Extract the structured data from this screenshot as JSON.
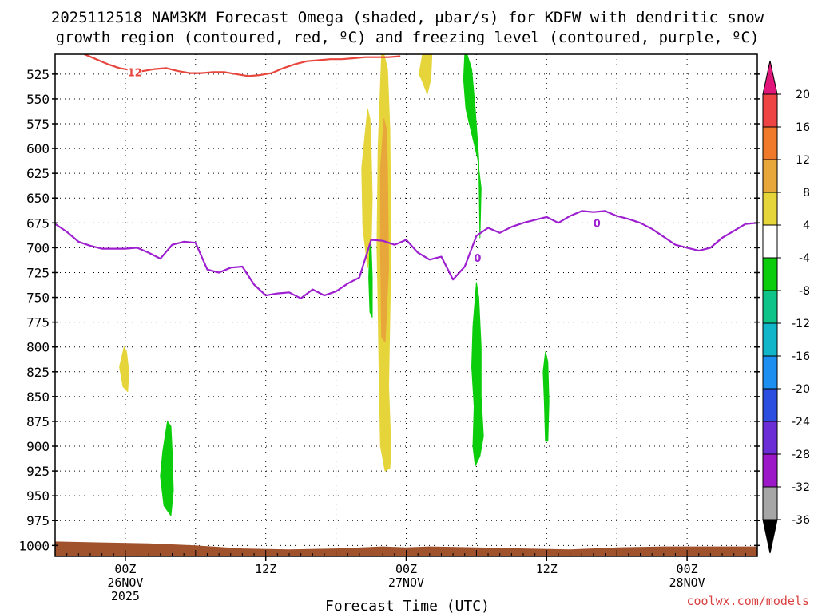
{
  "chart_data": {
    "type": "heatmap",
    "title_line1": "2025112518 NAM3KM Forecast Omega (shaded, μbar/s) for KDFW with dendritic snow",
    "title_line2": "growth region (contoured, red, ºC) and freezing level (contoured, purple, ºC)",
    "xlabel": "Forecast Time (UTC)",
    "ylabel": "",
    "credit": "coolwx.com/models",
    "x_unit": "forecast hour from 2025-11-25 18Z",
    "xlim": [
      0,
      60
    ],
    "ylim": [
      1011,
      505
    ],
    "y_ticks": [
      525,
      550,
      575,
      600,
      625,
      650,
      675,
      700,
      725,
      750,
      775,
      800,
      825,
      850,
      875,
      900,
      925,
      950,
      975,
      1000
    ],
    "y_tick_labels": [
      "525",
      "550",
      "575",
      "600",
      "625",
      "650",
      "675",
      "700",
      "725",
      "750",
      "775",
      "800",
      "825",
      "850",
      "875",
      "900",
      "925",
      "950",
      "975",
      "1000"
    ],
    "x_ticks": [
      {
        "hour": 6,
        "label1": "00Z",
        "label2": "26NOV",
        "label3": "2025"
      },
      {
        "hour": 18,
        "label1": "12Z",
        "label2": "",
        "label3": ""
      },
      {
        "hour": 30,
        "label1": "00Z",
        "label2": "27NOV",
        "label3": ""
      },
      {
        "hour": 42,
        "label1": "12Z",
        "label2": "",
        "label3": ""
      },
      {
        "hour": 54,
        "label1": "00Z",
        "label2": "28NOV",
        "label3": ""
      }
    ],
    "grid_hours": [
      6,
      12,
      18,
      24,
      30,
      36,
      42,
      48,
      54
    ],
    "colorbar": {
      "labels": [
        "20",
        "16",
        "12",
        "8",
        "4",
        "-4",
        "-8",
        "-12",
        "-16",
        "-20",
        "-24",
        "-28",
        "-32",
        "-36"
      ],
      "bins": [
        {
          "from": 16,
          "to": 20,
          "color": "#ef4444"
        },
        {
          "from": 12,
          "to": 16,
          "color": "#f07a2a"
        },
        {
          "from": 8,
          "to": 12,
          "color": "#e8a73a"
        },
        {
          "from": 4,
          "to": 8,
          "color": "#e5d53a"
        },
        {
          "from": -4,
          "to": 4,
          "color": "#ffffff"
        },
        {
          "from": -8,
          "to": -4,
          "color": "#0ccd0c"
        },
        {
          "from": -12,
          "to": -8,
          "color": "#0fc489"
        },
        {
          "from": -16,
          "to": -12,
          "color": "#11b7c9"
        },
        {
          "from": -20,
          "to": -16,
          "color": "#1c8ff0"
        },
        {
          "from": -24,
          "to": -20,
          "color": "#2b4ee0"
        },
        {
          "from": -28,
          "to": -24,
          "color": "#6a2dd6"
        },
        {
          "from": -32,
          "to": -28,
          "color": "#9c17c8"
        },
        {
          "from": -36,
          "to": -32,
          "color": "#a6a6a6"
        }
      ],
      "over_color": "#e0167a",
      "under_color": "#000000"
    },
    "shaded_regions": [
      {
        "name": "yellow-lift-1",
        "color": "#e5d53a",
        "x": [
          5.9,
          5.5,
          5.8,
          6.2,
          6.3,
          6.1
        ],
        "y": [
          800,
          820,
          840,
          845,
          825,
          805
        ]
      },
      {
        "name": "green-sink-1",
        "color": "#0ccd0c",
        "x": [
          9.6,
          9.2,
          9.0,
          9.3,
          9.9,
          10.1,
          10.0,
          9.9
        ],
        "y": [
          875,
          905,
          930,
          960,
          970,
          945,
          905,
          880
        ]
      },
      {
        "name": "yellow-lift-2",
        "color": "#e5d53a",
        "x": [
          26.7,
          26.2,
          26.3,
          26.7,
          27.0,
          27.1,
          27.0,
          26.9
        ],
        "y": [
          560,
          620,
          680,
          720,
          700,
          650,
          600,
          570
        ]
      },
      {
        "name": "yellow-lift-3",
        "color": "#e5d53a",
        "x": [
          27.9,
          27.6,
          27.5,
          27.6,
          27.7,
          27.8,
          28.2,
          28.6,
          28.7,
          28.5,
          28.7,
          28.6,
          28.4,
          28.1
        ],
        "y": [
          505,
          600,
          700,
          760,
          840,
          900,
          925,
          922,
          905,
          840,
          700,
          580,
          520,
          505
        ]
      },
      {
        "name": "orange-lift-core",
        "color": "#e8a73a",
        "x": [
          28.1,
          27.8,
          27.8,
          27.9,
          28.2,
          28.5,
          28.4,
          28.3
        ],
        "y": [
          570,
          620,
          700,
          790,
          795,
          720,
          620,
          580
        ]
      },
      {
        "name": "green-sink-2",
        "color": "#0ccd0c",
        "x": [
          26.9,
          26.8,
          26.9,
          27.1,
          27.1,
          27.0
        ],
        "y": [
          695,
          730,
          765,
          770,
          730,
          697
        ]
      },
      {
        "name": "yellow-lift-4",
        "color": "#e5d53a",
        "x": [
          31.4,
          31.1,
          31.3,
          31.8,
          32.1,
          32.2,
          32.1,
          32.0
        ],
        "y": [
          505,
          525,
          530,
          545,
          530,
          505,
          505,
          505
        ]
      },
      {
        "name": "green-sink-3",
        "color": "#0ccd0c",
        "x": [
          35.0,
          34.9,
          35.1,
          35.6,
          36.1,
          36.4,
          36.3,
          36.2,
          35.9,
          35.6,
          35.2
        ],
        "y": [
          505,
          530,
          560,
          585,
          610,
          640,
          690,
          610,
          560,
          520,
          505
        ]
      },
      {
        "name": "green-sink-4",
        "color": "#0ccd0c",
        "x": [
          36.0,
          35.7,
          35.6,
          35.8,
          35.7,
          35.9,
          36.3,
          36.6,
          36.4,
          36.4,
          36.2
        ],
        "y": [
          735,
          780,
          820,
          860,
          900,
          920,
          910,
          890,
          850,
          800,
          750
        ]
      },
      {
        "name": "green-sink-5",
        "color": "#0ccd0c",
        "x": [
          41.9,
          41.7,
          41.8,
          41.9,
          42.1,
          42.2,
          42.1
        ],
        "y": [
          805,
          825,
          855,
          895,
          895,
          855,
          815
        ]
      }
    ],
    "contours": [
      {
        "name": "dendritic-growth-minus12",
        "label": "12",
        "label_hour": 6.8,
        "label_level": 523,
        "color": "#e8453c",
        "hours": [
          2.5,
          3.5,
          4.5,
          5.5,
          6.5,
          7.5,
          8.5,
          9.5,
          10.5,
          11.5,
          12.5,
          13.5,
          14.5,
          15.5,
          16.5,
          17.5,
          18.5,
          19.5,
          20.5,
          21.5,
          22.5,
          23.5,
          24.5,
          25.5,
          26.5,
          27.5,
          28.5,
          29.5
        ],
        "levels": [
          505,
          510,
          515,
          519,
          521,
          522,
          520,
          519,
          522,
          524,
          524,
          523,
          523,
          525,
          527,
          526,
          524,
          519,
          515,
          512,
          511,
          510,
          510,
          509,
          508,
          508,
          508,
          507
        ]
      },
      {
        "name": "freezing-level-0",
        "label": "0",
        "label_hour": 36.1,
        "label_level": 710,
        "label2": "0",
        "label2_hour": 46.3,
        "label2_level": 675,
        "color": "#9d1fcf",
        "hours": [
          0,
          1,
          2,
          3,
          4,
          5,
          6,
          7,
          8,
          9,
          10,
          11,
          12,
          13,
          14,
          15,
          16,
          17,
          18,
          19,
          20,
          21,
          22,
          23,
          24,
          25,
          26,
          27,
          28,
          29,
          30,
          31,
          32,
          33,
          34,
          35,
          36,
          37,
          38,
          39,
          40,
          41,
          42,
          43,
          44,
          45,
          46,
          47,
          48,
          49,
          50,
          51,
          52,
          53,
          54,
          55,
          56,
          57,
          58,
          59,
          60
        ],
        "levels": [
          676,
          684,
          694,
          698,
          701,
          701,
          701,
          700,
          705,
          711,
          697,
          694,
          695,
          722,
          725,
          720,
          719,
          737,
          748,
          746,
          745,
          751,
          742,
          748,
          744,
          736,
          730,
          692,
          693,
          697,
          692,
          705,
          712,
          709,
          732,
          719,
          688,
          680,
          685,
          679,
          675,
          672,
          669,
          675,
          668,
          663,
          664,
          663,
          668,
          671,
          675,
          681,
          689,
          697,
          700,
          703,
          700,
          690,
          683,
          676,
          675
        ]
      }
    ],
    "terrain": {
      "name": "surface-ground",
      "color": "#a0522d",
      "hours": [
        0,
        4,
        8,
        12,
        16,
        20,
        24,
        28,
        30,
        32,
        36,
        40,
        44,
        48,
        52,
        56,
        60
      ],
      "levels": [
        996,
        997,
        998,
        1000,
        1003,
        1004,
        1003,
        1001,
        1002,
        1001,
        1002,
        1003,
        1004,
        1002,
        1001,
        1001,
        1001
      ]
    }
  }
}
